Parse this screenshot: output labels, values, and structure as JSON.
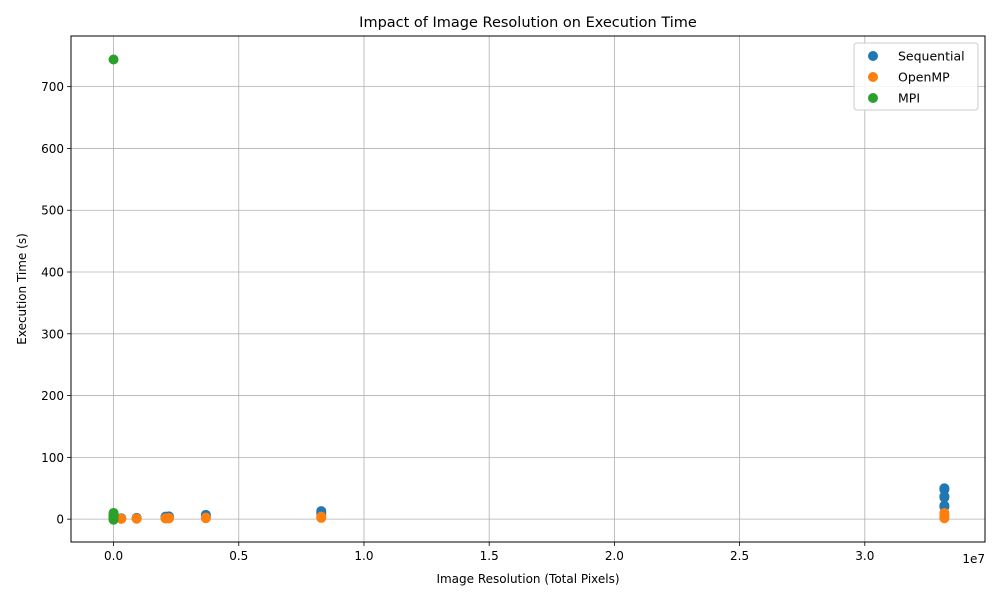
{
  "chart_data": {
    "type": "scatter",
    "title": "Impact of Image Resolution on Execution Time",
    "xlabel": "Image Resolution (Total Pixels)",
    "ylabel": "Execution Time (s)",
    "x_offset_label": "1e7",
    "xlim": [
      -1700000,
      34800000
    ],
    "ylim": [
      -37,
      782
    ],
    "x_ticks": [
      0,
      5000000,
      10000000,
      15000000,
      20000000,
      25000000,
      30000000
    ],
    "x_tick_labels": [
      "0.0",
      "0.5",
      "1.0",
      "1.5",
      "2.0",
      "2.5",
      "3.0"
    ],
    "y_ticks": [
      0,
      100,
      200,
      300,
      400,
      500,
      600,
      700
    ],
    "y_tick_labels": [
      "0",
      "100",
      "200",
      "300",
      "400",
      "500",
      "600",
      "700"
    ],
    "grid": true,
    "legend_position": "top-right",
    "series": [
      {
        "name": "Sequential",
        "color": "#1f77b4",
        "points": [
          [
            0,
            1
          ],
          [
            0,
            2
          ],
          [
            0,
            3
          ],
          [
            307200,
            1.5
          ],
          [
            307200,
            1
          ],
          [
            921600,
            2
          ],
          [
            921600,
            1.5
          ],
          [
            2073600,
            4
          ],
          [
            2073600,
            3
          ],
          [
            2211840,
            4.5
          ],
          [
            2211840,
            3
          ],
          [
            3686400,
            7
          ],
          [
            3686400,
            5
          ],
          [
            8294400,
            13
          ],
          [
            8294400,
            10
          ],
          [
            8294400,
            8
          ],
          [
            33177600,
            50
          ],
          [
            33177600,
            48
          ],
          [
            33177600,
            37
          ],
          [
            33177600,
            35
          ],
          [
            33177600,
            22
          ],
          [
            33177600,
            20
          ]
        ]
      },
      {
        "name": "OpenMP",
        "color": "#ff7f0e",
        "points": [
          [
            0,
            0.5
          ],
          [
            0,
            1
          ],
          [
            307200,
            0.5
          ],
          [
            307200,
            0.8
          ],
          [
            921600,
            1
          ],
          [
            921600,
            0.7
          ],
          [
            2073600,
            1.5
          ],
          [
            2073600,
            1
          ],
          [
            2211840,
            2
          ],
          [
            2211840,
            1.2
          ],
          [
            3686400,
            2.5
          ],
          [
            3686400,
            1.5
          ],
          [
            8294400,
            4
          ],
          [
            8294400,
            3
          ],
          [
            8294400,
            2
          ],
          [
            33177600,
            10
          ],
          [
            33177600,
            6
          ],
          [
            33177600,
            3
          ],
          [
            33177600,
            1.5
          ]
        ]
      },
      {
        "name": "MPI",
        "color": "#2ca02c",
        "points": [
          [
            0,
            744
          ],
          [
            0,
            10
          ],
          [
            0,
            7
          ],
          [
            0,
            5
          ],
          [
            0,
            3
          ],
          [
            0,
            1
          ],
          [
            0,
            -1
          ]
        ]
      }
    ]
  }
}
